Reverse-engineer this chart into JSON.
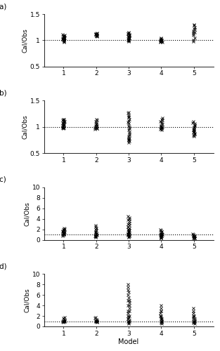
{
  "panels": [
    "(a)",
    "(b)",
    "(c)",
    "(d)"
  ],
  "xlabel": "Model",
  "ylabel": "Cal/Obs",
  "models": [
    1,
    2,
    3,
    4,
    5
  ],
  "dashed_line_ab": 1.0,
  "dashed_line_cd": 1.0,
  "ylim_ab": [
    0.5,
    1.5
  ],
  "ylim_cd": [
    0,
    10
  ],
  "yticks_ab": [
    0.5,
    1.0,
    1.5
  ],
  "yticks_cd": [
    0,
    2,
    4,
    6,
    8,
    10
  ],
  "panel_a": {
    "model1": [
      0.97,
      0.98,
      0.99,
      1.0,
      1.01,
      1.02,
      1.03,
      1.04,
      1.05,
      1.06,
      1.07,
      1.08,
      1.09,
      1.1,
      1.11,
      1.02,
      1.03,
      1.04,
      1.05,
      1.06
    ],
    "model2": [
      1.07,
      1.08,
      1.09,
      1.1,
      1.11,
      1.12,
      1.13,
      1.14,
      1.09,
      1.1,
      1.11,
      1.12
    ],
    "model3": [
      0.98,
      0.99,
      1.0,
      1.01,
      1.02,
      1.03,
      1.04,
      1.05,
      1.06,
      1.07,
      1.08,
      1.09,
      1.1,
      1.11,
      1.12,
      1.13,
      1.14,
      1.15,
      1.0,
      1.02
    ],
    "model4": [
      0.96,
      0.97,
      0.98,
      0.99,
      1.0,
      1.01,
      1.02,
      1.03,
      1.04,
      0.98,
      0.99,
      1.0
    ],
    "model5": [
      0.98,
      1.0,
      1.05,
      1.1,
      1.15,
      1.18,
      1.2,
      1.22,
      1.25,
      1.28,
      1.3,
      1.12,
      1.15
    ]
  },
  "panel_b": {
    "model1": [
      0.98,
      0.99,
      1.0,
      1.01,
      1.02,
      1.03,
      1.04,
      1.05,
      1.06,
      1.07,
      1.08,
      1.09,
      1.1,
      1.11,
      1.12,
      1.13,
      1.14,
      1.15,
      0.97,
      0.99
    ],
    "model2": [
      0.96,
      0.97,
      0.98,
      0.99,
      1.0,
      1.01,
      1.02,
      1.03,
      1.05,
      1.07,
      1.09,
      1.11,
      1.13,
      1.15,
      0.97,
      0.99
    ],
    "model3": [
      0.7,
      0.73,
      0.76,
      0.79,
      0.82,
      0.85,
      0.88,
      0.91,
      0.94,
      0.97,
      1.0,
      1.03,
      1.06,
      1.09,
      1.12,
      1.15,
      1.18,
      1.2,
      1.23,
      1.26,
      1.28,
      0.74,
      0.77,
      0.8
    ],
    "model4": [
      0.95,
      0.97,
      0.99,
      1.0,
      1.01,
      1.03,
      1.05,
      1.07,
      1.09,
      1.11,
      1.13,
      1.15,
      1.17,
      0.96,
      0.98,
      1.0
    ],
    "model5": [
      0.82,
      0.84,
      0.86,
      0.88,
      0.9,
      0.92,
      0.94,
      0.96,
      0.98,
      1.0,
      1.02,
      1.04,
      1.06,
      1.08,
      1.1,
      0.85,
      0.9,
      0.95
    ]
  },
  "panel_c": {
    "model1": [
      0.8,
      0.9,
      1.0,
      1.1,
      1.2,
      1.3,
      1.4,
      1.5,
      1.6,
      1.7,
      1.8,
      1.9,
      2.0,
      2.1,
      2.2,
      1.0,
      1.2,
      1.5
    ],
    "model2": [
      0.5,
      0.6,
      0.7,
      0.8,
      0.9,
      1.0,
      1.1,
      1.2,
      1.4,
      1.6,
      1.8,
      2.0,
      2.2,
      2.5,
      2.8,
      0.7,
      0.9,
      1.2
    ],
    "model3": [
      0.5,
      0.6,
      0.7,
      0.8,
      0.9,
      1.0,
      1.1,
      1.2,
      1.3,
      1.4,
      1.5,
      1.6,
      1.8,
      2.0,
      2.2,
      2.5,
      2.8,
      3.0,
      3.2,
      3.5,
      3.8,
      4.0,
      4.2,
      4.5,
      1.0,
      1.5,
      2.0,
      2.5
    ],
    "model4": [
      0.3,
      0.4,
      0.5,
      0.6,
      0.7,
      0.8,
      0.9,
      1.0,
      1.1,
      1.2,
      1.4,
      1.6,
      1.8,
      2.0,
      0.5,
      0.7,
      1.0,
      1.5
    ],
    "model5": [
      0.2,
      0.3,
      0.4,
      0.5,
      0.6,
      0.7,
      0.8,
      0.9,
      1.0,
      1.1,
      0.4,
      0.6,
      0.8
    ]
  },
  "panel_d": {
    "model1": [
      0.8,
      0.9,
      1.0,
      1.1,
      1.2,
      1.4,
      1.6,
      1.8,
      0.9,
      1.0,
      1.1
    ],
    "model2": [
      0.8,
      0.9,
      1.0,
      1.1,
      1.2,
      1.4,
      1.6,
      1.8,
      0.9,
      1.0,
      1.1
    ],
    "model3": [
      0.5,
      0.7,
      0.9,
      1.0,
      1.2,
      1.5,
      1.8,
      2.0,
      2.5,
      3.0,
      3.5,
      4.0,
      4.5,
      5.0,
      5.5,
      6.0,
      6.5,
      7.0,
      7.5,
      8.0,
      1.0,
      1.5,
      2.0,
      3.0,
      4.0,
      5.0
    ],
    "model4": [
      0.5,
      0.7,
      0.9,
      1.0,
      1.2,
      1.5,
      1.8,
      2.0,
      2.5,
      3.0,
      3.5,
      4.0,
      0.8,
      1.0,
      1.5,
      2.0,
      3.0
    ],
    "model5": [
      0.5,
      0.7,
      0.9,
      1.0,
      1.2,
      1.5,
      1.8,
      2.0,
      2.5,
      3.0,
      3.5,
      0.8,
      1.0,
      1.5,
      2.0
    ]
  }
}
